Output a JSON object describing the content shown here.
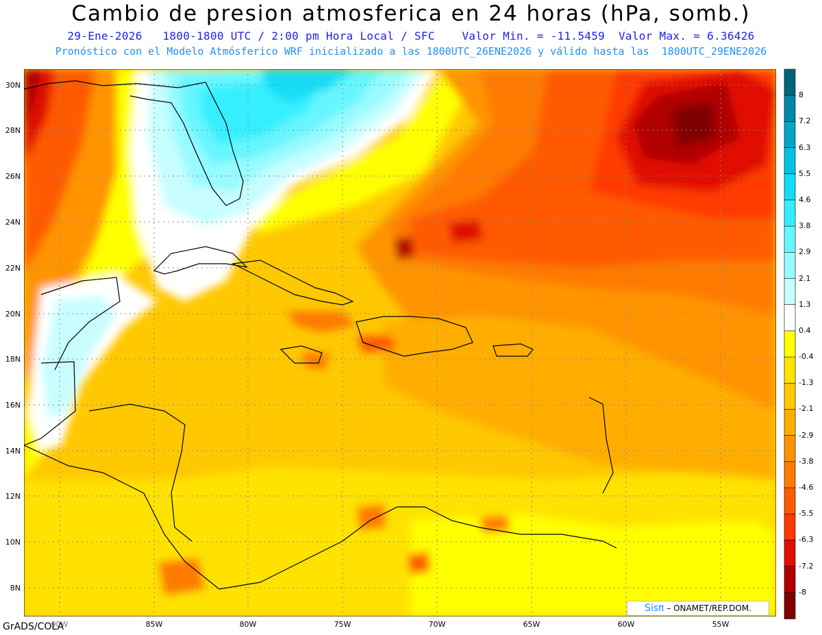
{
  "header": {
    "title": "Cambio de presion atmosferica en 24 horas (hPa, somb.)",
    "subtitle_line1": "29-Ene-2026   1800-1800 UTC / 2:00 pm Hora Local / SFC    Valor Min. = -11.5459  Valor Max. = 6.36426",
    "subtitle_line2": "Pronóstico con el Modelo Atmósferico WRF inicializado a las 1800UTC_26ENE2026 y válido hasta las  1800UTC_29ENE2026"
  },
  "map": {
    "lat_labels": [
      "30N",
      "28N",
      "26N",
      "24N",
      "22N",
      "20N",
      "18N",
      "16N",
      "14N",
      "12N",
      "10N",
      "8N"
    ],
    "lon_labels": [
      "85W",
      "80W",
      "75W",
      "70W",
      "65W",
      "60W",
      "55W"
    ],
    "lon_label_hidden": "90W"
  },
  "colorbar": {
    "labels": [
      "8",
      "7.2",
      "6.3",
      "5.5",
      "4.6",
      "3.8",
      "2.9",
      "2.1",
      "1.3",
      "0.4",
      "-0.4",
      "-1.3",
      "-2.1",
      "-2.9",
      "-3.8",
      "-4.6",
      "-5.5",
      "-6.3",
      "-7.2",
      "-8"
    ],
    "colors": [
      "#00647a",
      "#0087a8",
      "#00a5c7",
      "#00c3e3",
      "#12dcf6",
      "#34efff",
      "#66f6ff",
      "#98fbff",
      "#c8feff",
      "#ffffff",
      "#ffff00",
      "#ffe200",
      "#ffc800",
      "#ffae00",
      "#ff9400",
      "#ff7a00",
      "#ff5a00",
      "#ff3a00",
      "#e01000",
      "#b00000",
      "#800000"
    ]
  },
  "footer": {
    "credit": "GrADS/COLA",
    "brand_logo": "Sisπ",
    "brand_text": "– ONAMET/REP.DOM."
  }
}
